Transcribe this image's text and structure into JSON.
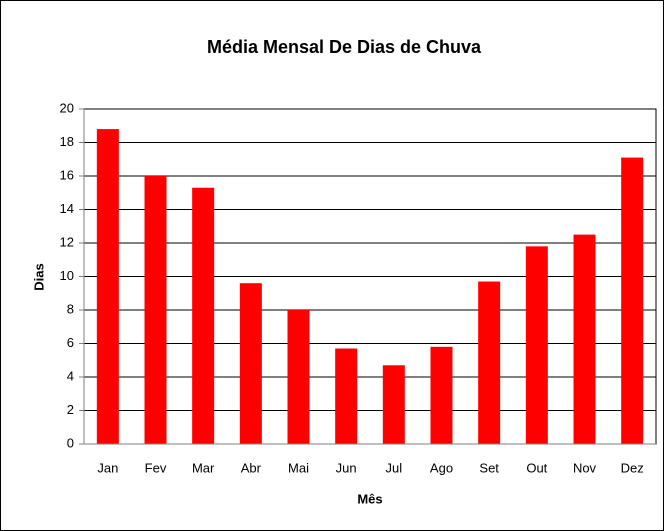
{
  "chart_data": {
    "type": "bar",
    "title": "Média Mensal De Dias de Chuva",
    "x_label": "Mês",
    "y_label": "Dias",
    "categories": [
      "Jan",
      "Fev",
      "Mar",
      "Abr",
      "Mai",
      "Jun",
      "Jul",
      "Ago",
      "Set",
      "Out",
      "Nov",
      "Dez"
    ],
    "values": [
      18.8,
      16,
      15.3,
      9.6,
      8,
      5.7,
      4.7,
      5.8,
      9.7,
      11.8,
      12.5,
      17.1
    ],
    "color": "#ff0000",
    "ylim": [
      0,
      20
    ],
    "yticks": [
      0,
      2,
      4,
      6,
      8,
      10,
      12,
      14,
      16,
      18,
      20
    ],
    "grid": true
  }
}
